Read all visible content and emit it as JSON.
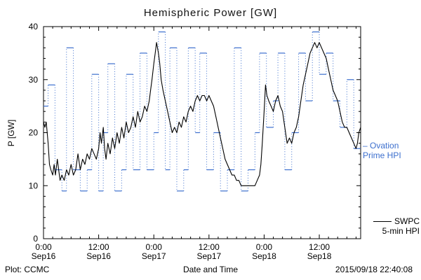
{
  "chart_data": {
    "type": "line",
    "title": "Hemispheric Power [GW]",
    "xlabel": "Date and Time",
    "ylabel": "P [GW]",
    "ylim": [
      0,
      40
    ],
    "xlim_hours": [
      0,
      69
    ],
    "y_ticks": [
      0,
      10,
      20,
      30,
      40
    ],
    "x_ticks": [
      {
        "hour": 0,
        "time": "0:00",
        "date": "Sep16"
      },
      {
        "hour": 12,
        "time": "12:00",
        "date": "Sep16"
      },
      {
        "hour": 24,
        "time": "0:00",
        "date": "Sep17"
      },
      {
        "hour": 36,
        "time": "12:00",
        "date": "Sep17"
      },
      {
        "hour": 48,
        "time": "0:00",
        "date": "Sep18"
      },
      {
        "hour": 60,
        "time": "12:00",
        "date": "Sep18"
      }
    ],
    "series": [
      {
        "name": "Ovation Prime HPI",
        "color": "#3c6fce",
        "style": "dotted-step",
        "points": [
          [
            0,
            25
          ],
          [
            1,
            29
          ],
          [
            2.5,
            13
          ],
          [
            4,
            9
          ],
          [
            5,
            36
          ],
          [
            6.5,
            13
          ],
          [
            8,
            9
          ],
          [
            9.5,
            13
          ],
          [
            10.5,
            31
          ],
          [
            12,
            9
          ],
          [
            13,
            20
          ],
          [
            14,
            33
          ],
          [
            15.5,
            9
          ],
          [
            17,
            13
          ],
          [
            18,
            31
          ],
          [
            19.5,
            13
          ],
          [
            21,
            35
          ],
          [
            22.5,
            13
          ],
          [
            24,
            20
          ],
          [
            25,
            39
          ],
          [
            26.5,
            13
          ],
          [
            27.5,
            36
          ],
          [
            29,
            9
          ],
          [
            30.5,
            13
          ],
          [
            31.5,
            36
          ],
          [
            33,
            20
          ],
          [
            34,
            35
          ],
          [
            35.5,
            13
          ],
          [
            37,
            20
          ],
          [
            38.5,
            9
          ],
          [
            40,
            13
          ],
          [
            41.5,
            36
          ],
          [
            43,
            9
          ],
          [
            44.5,
            13
          ],
          [
            46,
            20
          ],
          [
            47,
            35
          ],
          [
            48.5,
            21
          ],
          [
            50,
            26
          ],
          [
            51,
            35
          ],
          [
            52.5,
            13
          ],
          [
            54,
            20
          ],
          [
            55.5,
            35
          ],
          [
            57,
            26
          ],
          [
            58.5,
            39
          ],
          [
            60,
            31
          ],
          [
            61.5,
            35
          ],
          [
            63,
            26
          ],
          [
            64.5,
            21
          ],
          [
            66,
            30
          ],
          [
            67.5,
            17
          ]
        ]
      },
      {
        "name": "SWPC 5-min HPI",
        "color": "#000000",
        "style": "solid",
        "points": [
          [
            0,
            22
          ],
          [
            0.3,
            21
          ],
          [
            0.6,
            22
          ],
          [
            1,
            18
          ],
          [
            1.3,
            14
          ],
          [
            1.6,
            13
          ],
          [
            2,
            12
          ],
          [
            2.3,
            14
          ],
          [
            2.6,
            12
          ],
          [
            3,
            15
          ],
          [
            3.3,
            13
          ],
          [
            3.6,
            11
          ],
          [
            4,
            12
          ],
          [
            4.5,
            11
          ],
          [
            5,
            13
          ],
          [
            5.5,
            12
          ],
          [
            6,
            14
          ],
          [
            6.5,
            12
          ],
          [
            7,
            13
          ],
          [
            7.5,
            16
          ],
          [
            8,
            13
          ],
          [
            8.5,
            15
          ],
          [
            9,
            14
          ],
          [
            9.5,
            16
          ],
          [
            10,
            15
          ],
          [
            10.5,
            17
          ],
          [
            11,
            16
          ],
          [
            11.5,
            15
          ],
          [
            12,
            17
          ],
          [
            12.3,
            20
          ],
          [
            12.6,
            18
          ],
          [
            13,
            21
          ],
          [
            13.3,
            17
          ],
          [
            13.6,
            15
          ],
          [
            14,
            18
          ],
          [
            14.5,
            16
          ],
          [
            15,
            19
          ],
          [
            15.5,
            17
          ],
          [
            16,
            20
          ],
          [
            16.5,
            18
          ],
          [
            17,
            21
          ],
          [
            17.5,
            19
          ],
          [
            18,
            22
          ],
          [
            18.5,
            20
          ],
          [
            19,
            21
          ],
          [
            19.5,
            23
          ],
          [
            20,
            21
          ],
          [
            20.5,
            24
          ],
          [
            21,
            22
          ],
          [
            21.5,
            23
          ],
          [
            22,
            25
          ],
          [
            22.5,
            24
          ],
          [
            23,
            26
          ],
          [
            23.3,
            28
          ],
          [
            23.6,
            30
          ],
          [
            24,
            33
          ],
          [
            24.3,
            35
          ],
          [
            24.6,
            37
          ],
          [
            25,
            35
          ],
          [
            25.3,
            33
          ],
          [
            25.6,
            30
          ],
          [
            26,
            28
          ],
          [
            26.5,
            26
          ],
          [
            27,
            24
          ],
          [
            27.5,
            22
          ],
          [
            28,
            20
          ],
          [
            28.5,
            21
          ],
          [
            29,
            20
          ],
          [
            29.5,
            22
          ],
          [
            30,
            21
          ],
          [
            30.5,
            23
          ],
          [
            31,
            22
          ],
          [
            31.5,
            24
          ],
          [
            32,
            25
          ],
          [
            32.5,
            24
          ],
          [
            33,
            26
          ],
          [
            33.5,
            27
          ],
          [
            34,
            26
          ],
          [
            34.5,
            27
          ],
          [
            35,
            27
          ],
          [
            35.5,
            26
          ],
          [
            36,
            27
          ],
          [
            36.5,
            26
          ],
          [
            37,
            25
          ],
          [
            37.5,
            23
          ],
          [
            38,
            21
          ],
          [
            38.5,
            19
          ],
          [
            39,
            17
          ],
          [
            39.5,
            15
          ],
          [
            40,
            14
          ],
          [
            40.5,
            13
          ],
          [
            41,
            12
          ],
          [
            41.5,
            12
          ],
          [
            42,
            11
          ],
          [
            42.5,
            11
          ],
          [
            43,
            10
          ],
          [
            43.5,
            10
          ],
          [
            44,
            10
          ],
          [
            44.5,
            10
          ],
          [
            45,
            10
          ],
          [
            45.5,
            10
          ],
          [
            46,
            10
          ],
          [
            46.5,
            11
          ],
          [
            47,
            12
          ],
          [
            47.3,
            14
          ],
          [
            47.6,
            18
          ],
          [
            48,
            24
          ],
          [
            48.3,
            29
          ],
          [
            48.6,
            27
          ],
          [
            49,
            26
          ],
          [
            49.5,
            25
          ],
          [
            50,
            24
          ],
          [
            50.5,
            26
          ],
          [
            51,
            27
          ],
          [
            51.5,
            25
          ],
          [
            52,
            24
          ],
          [
            52.5,
            21
          ],
          [
            53,
            18
          ],
          [
            53.5,
            19
          ],
          [
            54,
            18
          ],
          [
            54.5,
            20
          ],
          [
            55,
            21
          ],
          [
            55.5,
            23
          ],
          [
            56,
            26
          ],
          [
            56.5,
            29
          ],
          [
            57,
            31
          ],
          [
            57.5,
            33
          ],
          [
            58,
            35
          ],
          [
            58.5,
            36
          ],
          [
            59,
            37
          ],
          [
            59.5,
            36
          ],
          [
            60,
            37
          ],
          [
            60.5,
            36
          ],
          [
            61,
            35
          ],
          [
            61.5,
            34
          ],
          [
            62,
            32
          ],
          [
            62.5,
            30
          ],
          [
            63,
            28
          ],
          [
            63.5,
            27
          ],
          [
            64,
            26
          ],
          [
            64.5,
            24
          ],
          [
            65,
            22
          ],
          [
            65.5,
            21
          ],
          [
            66,
            21
          ],
          [
            66.5,
            20
          ],
          [
            67,
            19
          ],
          [
            67.5,
            18
          ],
          [
            68,
            17
          ],
          [
            68.3,
            18
          ],
          [
            68.6,
            20
          ],
          [
            69,
            21
          ]
        ]
      }
    ],
    "legend_position": "right"
  },
  "legend": {
    "ovation_line1": "– Ovation",
    "ovation_line2": "Prime HPI",
    "swpc_line1": "SWPC",
    "swpc_line2": "5-min HPI"
  },
  "footer": {
    "left": "Plot: CCMC",
    "right": "2015/09/18 22:40:08"
  }
}
